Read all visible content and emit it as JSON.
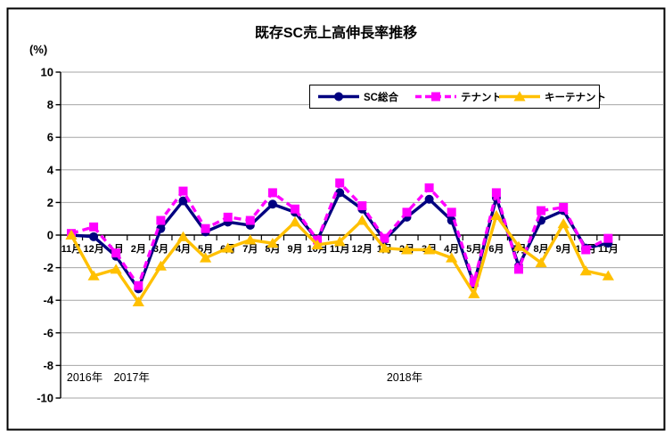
{
  "window": {
    "kind": "chart-image"
  },
  "chart_data": {
    "type": "line",
    "title": "既存SC売上高伸長率推移",
    "ylabel": "(%)",
    "xlabel": "",
    "ylim": [
      -10,
      10
    ],
    "ytick_step": 2,
    "grid": true,
    "legend_position": "top-center-inside",
    "categories": [
      "11月",
      "12月",
      "1月",
      "2月",
      "3月",
      "4月",
      "5月",
      "6月",
      "7月",
      "8月",
      "9月",
      "10月",
      "11月",
      "12月",
      "1月",
      "2月",
      "3月",
      "4月",
      "5月",
      "6月",
      "7月",
      "8月",
      "9月",
      "10月",
      "11月"
    ],
    "year_labels": [
      {
        "label": "2016年",
        "center_index": 0.6
      },
      {
        "label": "2017年",
        "center_index": 2.7
      },
      {
        "label": "2018年",
        "center_index": 14.9
      }
    ],
    "series": [
      {
        "id": "sc-total",
        "name": "SC総合",
        "color": "#000080",
        "marker": "circle",
        "line": "solid",
        "values": [
          0.0,
          -0.1,
          -1.3,
          -3.3,
          0.4,
          2.1,
          0.2,
          0.8,
          0.6,
          1.9,
          1.4,
          -0.3,
          2.6,
          1.6,
          -0.3,
          1.1,
          2.2,
          0.9,
          -3.0,
          2.3,
          -1.9,
          0.9,
          1.5,
          -0.8,
          -0.5
        ]
      },
      {
        "id": "tenant",
        "name": "テナント",
        "color": "#FF00FF",
        "marker": "square",
        "line": "dashed",
        "values": [
          0.1,
          0.5,
          -1.1,
          -3.1,
          0.9,
          2.7,
          0.4,
          1.1,
          0.9,
          2.6,
          1.6,
          -0.3,
          3.2,
          1.8,
          -0.2,
          1.4,
          2.9,
          1.4,
          -2.9,
          2.6,
          -2.1,
          1.5,
          1.7,
          -0.9,
          -0.2
        ]
      },
      {
        "id": "key-tenant",
        "name": "キーテナント",
        "color": "#FFC000",
        "marker": "triangle",
        "line": "solid",
        "values": [
          0.0,
          -2.5,
          -2.1,
          -4.1,
          -1.9,
          -0.1,
          -1.4,
          -0.8,
          -0.3,
          -0.5,
          0.8,
          -0.6,
          -0.4,
          0.9,
          -0.8,
          -0.9,
          -0.9,
          -1.4,
          -3.6,
          1.2,
          -0.7,
          -1.7,
          0.7,
          -2.2,
          -2.5
        ]
      }
    ],
    "colors": {
      "gridline": "#A6A6A6",
      "axis": "#000000",
      "frame_border": "#000000",
      "legend_border": "#000000",
      "background": "#FFFFFF"
    }
  }
}
